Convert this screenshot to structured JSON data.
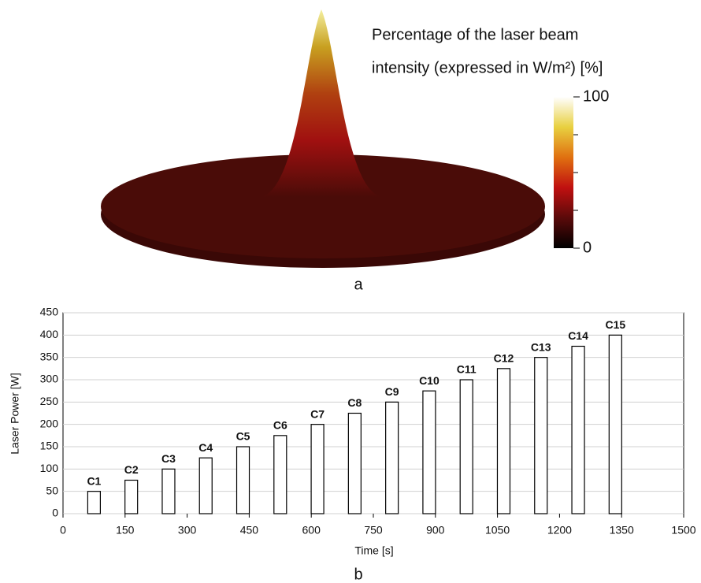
{
  "chart_data": [
    {
      "type": "surface",
      "title": [
        "Percentage of the laser beam",
        "intensity (expressed in W/m²) [%]"
      ],
      "clim": [
        0,
        100
      ],
      "cticks": [
        0,
        100
      ],
      "cminor": [
        25,
        50,
        75
      ],
      "colors": [
        "#000000",
        "#5a0a0a",
        "#c01010",
        "#e07010",
        "#e8d040",
        "#ffffff"
      ],
      "panel": "a"
    },
    {
      "type": "bar",
      "xlabel": "Time [s]",
      "ylabel": "Laser Power [W]",
      "x": [
        75,
        165,
        255,
        345,
        435,
        525,
        615,
        705,
        795,
        885,
        975,
        1065,
        1155,
        1245,
        1335
      ],
      "values": [
        50,
        75,
        100,
        125,
        150,
        175,
        200,
        225,
        250,
        275,
        300,
        325,
        350,
        375,
        400
      ],
      "bar_labels": [
        "C1",
        "C2",
        "C3",
        "C4",
        "C5",
        "C6",
        "C7",
        "C8",
        "C9",
        "C10",
        "C11",
        "C12",
        "C13",
        "C14",
        "C15"
      ],
      "xlim": [
        0,
        1500
      ],
      "xticks": [
        0,
        150,
        300,
        450,
        600,
        750,
        900,
        1050,
        1200,
        1350,
        1500
      ],
      "ylim": [
        0,
        450
      ],
      "yticks": [
        0,
        50,
        100,
        150,
        200,
        250,
        300,
        350,
        400,
        450
      ],
      "grid": true,
      "color": "#ffffff",
      "edgecolor": "#000000",
      "panel": "b"
    }
  ]
}
